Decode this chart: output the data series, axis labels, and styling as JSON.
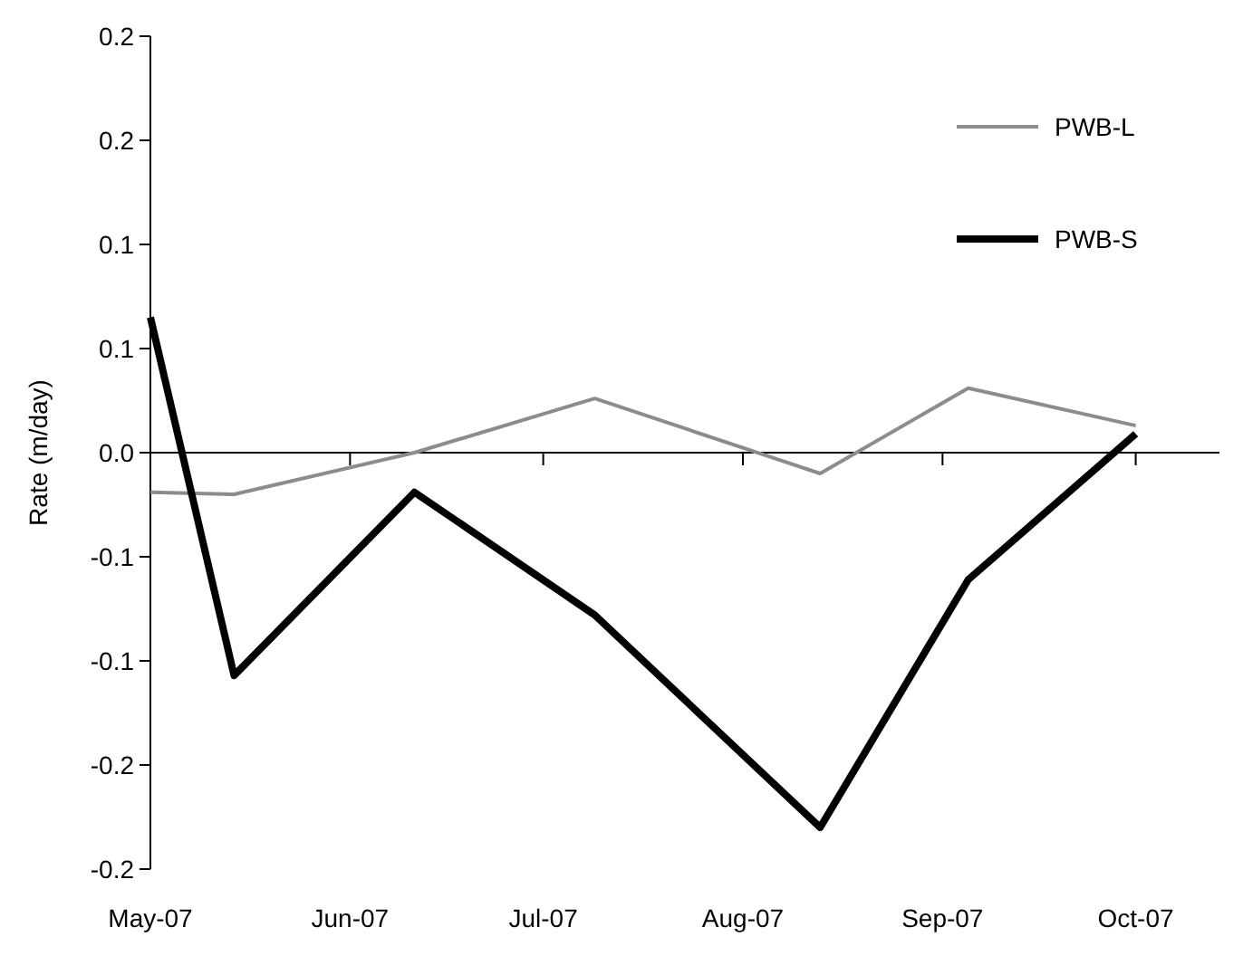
{
  "chart_data": {
    "type": "line",
    "ylabel": "Rate  (m/day)",
    "x": [
      "2007-05-01",
      "2007-05-14",
      "2007-06-11",
      "2007-07-09",
      "2007-08-13",
      "2007-09-05",
      "2007-10-01"
    ],
    "series": [
      {
        "name": "PWB-L",
        "color": "#8c8c8c",
        "values": [
          -0.019,
          -0.02,
          0,
          0.026,
          -0.01,
          0.031,
          0.013
        ]
      },
      {
        "name": "PWB-S",
        "color": "#000000",
        "values": [
          0.065,
          -0.107,
          -0.019,
          -0.078,
          -0.18,
          -0.061,
          0.009
        ]
      }
    ],
    "xlim": [
      "2007-05-01",
      "2007-10-14"
    ],
    "xticks": [
      {
        "value": "2007-05-01",
        "label": "May-07"
      },
      {
        "value": "2007-06-01",
        "label": "Jun-07"
      },
      {
        "value": "2007-07-01",
        "label": "Jul-07"
      },
      {
        "value": "2007-08-01",
        "label": "Aug-07"
      },
      {
        "value": "2007-09-01",
        "label": "Sep-07"
      },
      {
        "value": "2007-10-01",
        "label": "Oct-07"
      }
    ],
    "ylim": [
      -0.2,
      0.2
    ],
    "yticks": [
      {
        "value": 0.2,
        "label": "0.2"
      },
      {
        "value": 0.15,
        "label": "0.2"
      },
      {
        "value": 0.1,
        "label": "0.1"
      },
      {
        "value": 0.05,
        "label": "0.1"
      },
      {
        "value": 0,
        "label": "0.0"
      },
      {
        "value": -0.05,
        "label": "-0.1"
      },
      {
        "value": -0.1,
        "label": "-0.1"
      },
      {
        "value": -0.15,
        "label": "-0.2"
      },
      {
        "value": -0.2,
        "label": "-0.2"
      }
    ],
    "legend": "top right",
    "line_style": "solid"
  }
}
